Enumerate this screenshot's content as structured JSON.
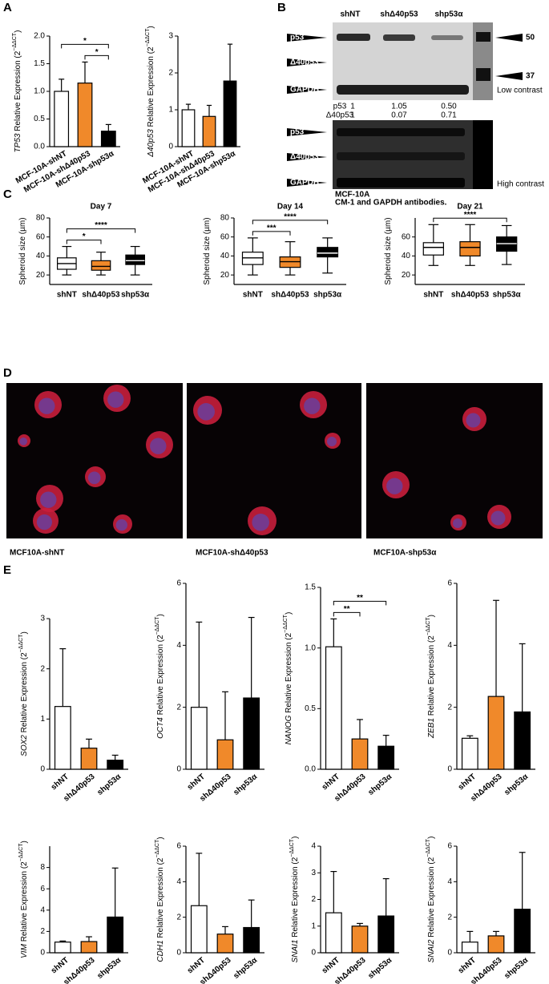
{
  "panel_labels": [
    "A",
    "B",
    "C",
    "D",
    "E"
  ],
  "chart_data": [
    {
      "type": "bar",
      "ylabel": [
        "TP53",
        " Relative Expression (2",
        "−ΔΔCT",
        ")"
      ],
      "categories": [
        "MCF-10A-shNT",
        "MCF-10A-shΔ40p53",
        "MCF-10A-shp53α"
      ],
      "values": [
        1.0,
        1.15,
        0.28
      ],
      "errors": [
        0.22,
        0.38,
        0.12
      ],
      "colors": [
        "#ffffff",
        "#f0892a",
        "#000000"
      ],
      "ylim": [
        0,
        2
      ],
      "yticks": [
        {
          "value": 0,
          "label": "0.0"
        },
        0.5,
        {
          "value": 1,
          "label": "1.0"
        },
        1.5,
        {
          "value": 2,
          "label": "2.0"
        }
      ],
      "significance": [
        {
          "from": 1,
          "to": 2,
          "label": "*"
        },
        {
          "from": 0,
          "to": 2,
          "label": "*"
        }
      ]
    },
    {
      "type": "bar",
      "ylabel": [
        "Δ40p53",
        " Relative Expression (2",
        "−ΔΔCT",
        ")"
      ],
      "categories": [
        "MCF-10A-shNT",
        "MCF-10A-shΔ40p53",
        "MCF-10A-shp53α"
      ],
      "values": [
        1.0,
        0.82,
        1.78
      ],
      "errors": [
        0.15,
        0.3,
        1.0
      ],
      "colors": [
        "#ffffff",
        "#f0892a",
        "#000000"
      ],
      "ylim": [
        0,
        3
      ],
      "yticks": [
        0,
        1,
        2,
        3
      ],
      "significance": []
    },
    {
      "type": "box",
      "title": "Day 7",
      "ylabel": [
        "Spheroid size (µm)"
      ],
      "categories": [
        "shNT",
        "shΔ40p53",
        "shp53α"
      ],
      "boxes": [
        [
          20,
          26,
          32,
          38,
          50
        ],
        [
          20,
          25,
          29,
          35,
          44
        ],
        [
          20,
          31,
          35,
          41,
          50
        ]
      ],
      "colors": [
        "#ffffff",
        "#f0892a",
        "#000000"
      ],
      "ylim": [
        10,
        80
      ],
      "yticks": [
        20,
        40,
        60,
        80
      ],
      "significance": [
        {
          "from": 0,
          "to": 1,
          "label": "*"
        },
        {
          "from": 0,
          "to": 2,
          "label": "****"
        }
      ]
    },
    {
      "type": "box",
      "title": "Day 14",
      "ylabel": [
        "Spheroid size (µm)"
      ],
      "categories": [
        "shNT",
        "shΔ40p53",
        "shp53α"
      ],
      "boxes": [
        [
          20,
          31,
          38,
          44,
          59
        ],
        [
          20,
          28,
          34,
          39,
          55
        ],
        [
          22,
          39,
          43,
          49,
          59
        ]
      ],
      "colors": [
        "#ffffff",
        "#f0892a",
        "#000000"
      ],
      "ylim": [
        10,
        80
      ],
      "yticks": [
        20,
        40,
        60,
        80
      ],
      "significance": [
        {
          "from": 0,
          "to": 1,
          "label": "***"
        },
        {
          "from": 0,
          "to": 2,
          "label": "****"
        }
      ]
    },
    {
      "type": "box",
      "title": "Day 21",
      "ylabel": [
        "Spheroid size (µm)"
      ],
      "categories": [
        "shNT",
        "shΔ40p53",
        "shp53α"
      ],
      "boxes": [
        [
          30,
          41,
          49,
          54,
          73
        ],
        [
          30,
          40,
          49,
          55,
          73
        ],
        [
          31,
          45,
          53,
          60,
          72
        ]
      ],
      "colors": [
        "#ffffff",
        "#f0892a",
        "#000000"
      ],
      "ylim": [
        10,
        80
      ],
      "yticks": [
        20,
        40,
        60
      ],
      "significance": [
        {
          "from": 0,
          "to": 2,
          "label": "****"
        }
      ]
    },
    {
      "type": "bar",
      "ylabel": [
        "SOX2",
        " Relative Expression (2",
        "−ΔΔCT",
        ")"
      ],
      "categories": [
        "shNT",
        "shΔ40p53",
        "shp53α"
      ],
      "values": [
        1.25,
        0.42,
        0.18
      ],
      "errors": [
        1.15,
        0.18,
        0.1
      ],
      "colors": [
        "#ffffff",
        "#f0892a",
        "#000000"
      ],
      "ylim": [
        0,
        3
      ],
      "yticks": [
        0,
        1,
        2,
        3
      ],
      "significance": []
    },
    {
      "type": "bar",
      "ylabel": [
        "OCT4",
        " Relative Expression (2",
        "−ΔΔCT",
        ")"
      ],
      "categories": [
        "shNT",
        "shΔ40p53",
        "shp53α"
      ],
      "values": [
        2.0,
        0.95,
        2.3
      ],
      "errors": [
        2.75,
        1.55,
        2.6
      ],
      "colors": [
        "#ffffff",
        "#f0892a",
        "#000000"
      ],
      "ylim": [
        0,
        6
      ],
      "yticks": [
        0,
        2,
        4,
        6
      ],
      "significance": []
    },
    {
      "type": "bar",
      "ylabel": [
        "NANOG",
        " Relative Expression (2",
        "−ΔΔCT",
        ")"
      ],
      "categories": [
        "shNT",
        "shΔ40p53",
        "shp53α"
      ],
      "values": [
        1.01,
        0.25,
        0.19
      ],
      "errors": [
        0.23,
        0.16,
        0.09
      ],
      "colors": [
        "#ffffff",
        "#f0892a",
        "#000000"
      ],
      "ylim": [
        0,
        1.5
      ],
      "yticks": [
        {
          "value": 0,
          "label": "0.0"
        },
        0.5,
        {
          "value": 1,
          "label": "1.0"
        },
        1.5
      ],
      "significance": [
        {
          "from": 0,
          "to": 1,
          "label": "**"
        },
        {
          "from": 0,
          "to": 2,
          "label": "**"
        }
      ]
    },
    {
      "type": "bar",
      "ylabel": [
        "ZEB1",
        " Relative Expression (2",
        "−ΔΔCT",
        ")"
      ],
      "categories": [
        "shNT",
        "shΔ40p53",
        "shp53α"
      ],
      "values": [
        1.0,
        2.35,
        1.85
      ],
      "errors": [
        0.08,
        3.1,
        2.2
      ],
      "colors": [
        "#ffffff",
        "#f0892a",
        "#000000"
      ],
      "ylim": [
        0,
        6
      ],
      "yticks": [
        0,
        2,
        4,
        6
      ],
      "significance": []
    },
    {
      "type": "bar",
      "ylabel": [
        "VIM",
        " Relative Expression (2",
        "−ΔΔCT",
        ")"
      ],
      "categories": [
        "shNT",
        "shΔ40p53",
        "shp53α"
      ],
      "values": [
        1.0,
        1.05,
        3.35
      ],
      "errors": [
        0.1,
        0.45,
        4.6
      ],
      "colors": [
        "#ffffff",
        "#f0892a",
        "#000000"
      ],
      "ylim": [
        0,
        10
      ],
      "yticks": [
        0,
        2,
        4,
        6,
        8
      ],
      "significance": []
    },
    {
      "type": "bar",
      "ylabel": [
        "CDH1",
        " Relative Expression (2",
        "−ΔΔCT",
        ")"
      ],
      "categories": [
        "shNT",
        "shΔ40p53",
        "shp53α"
      ],
      "values": [
        2.65,
        1.05,
        1.42
      ],
      "errors": [
        2.95,
        0.42,
        1.55
      ],
      "colors": [
        "#ffffff",
        "#f0892a",
        "#000000"
      ],
      "ylim": [
        0,
        6
      ],
      "yticks": [
        0,
        2,
        4,
        6
      ],
      "significance": []
    },
    {
      "type": "bar",
      "ylabel": [
        "SNAI1",
        " Relative Expression (2",
        "−ΔΔCT",
        ")"
      ],
      "categories": [
        "shNT",
        "shΔ40p53",
        "shp53α"
      ],
      "values": [
        1.5,
        1.0,
        1.38
      ],
      "errors": [
        1.55,
        0.1,
        1.4
      ],
      "colors": [
        "#ffffff",
        "#f0892a",
        "#000000"
      ],
      "ylim": [
        0,
        4
      ],
      "yticks": [
        0,
        1,
        2,
        3,
        4
      ],
      "significance": []
    },
    {
      "type": "bar",
      "ylabel": [
        "SNAI2",
        " Relative Expression (2",
        "−ΔΔCT",
        ")"
      ],
      "categories": [
        "shNT",
        "shΔ40p53",
        "shp53α"
      ],
      "values": [
        0.6,
        0.95,
        2.45
      ],
      "errors": [
        0.6,
        0.25,
        3.2
      ],
      "colors": [
        "#ffffff",
        "#f0892a",
        "#000000"
      ],
      "ylim": [
        0,
        6
      ],
      "yticks": [
        0,
        2,
        4,
        6
      ],
      "significance": []
    }
  ],
  "blot": {
    "lanes": [
      "shNT",
      "shΔ40p53",
      "shp53α"
    ],
    "bands_low": [
      "p53",
      "Δ40p53",
      "GAPDH"
    ],
    "markers": [
      "50",
      "37"
    ],
    "low_contrast": "Low contrast",
    "quant": [
      [
        "p53",
        "1",
        "1.05",
        "0.50"
      ],
      [
        "Δ40p53",
        "1",
        "0.07",
        "0.71"
      ]
    ],
    "bands_high": [
      "p53",
      "Δ40p53",
      "GAPDH"
    ],
    "high_contrast": "High contrast",
    "caption": [
      "MCF-10A",
      "CM-1 and GAPDH antibodies."
    ]
  },
  "micrographs": {
    "captions": [
      "MCF10A-shNT",
      "MCF10A-shΔ40p53",
      "MCF10A-shp53α"
    ]
  }
}
